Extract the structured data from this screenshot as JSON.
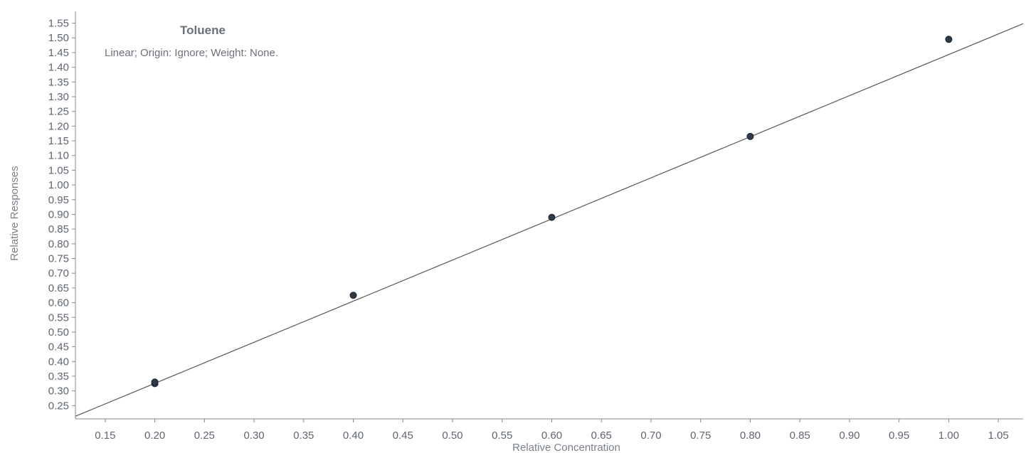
{
  "chart_data": {
    "type": "scatter",
    "title": "Toluene",
    "subtitle": "Linear; Origin: Ignore; Weight: None.",
    "xlabel": "Relative Concentration",
    "ylabel": "Relative Responses",
    "xlim": [
      0.12,
      1.075
    ],
    "ylim": [
      0.205,
      1.59
    ],
    "xticks": [
      "0.15",
      "0.20",
      "0.25",
      "0.30",
      "0.35",
      "0.40",
      "0.45",
      "0.50",
      "0.55",
      "0.60",
      "0.65",
      "0.70",
      "0.75",
      "0.80",
      "0.85",
      "0.90",
      "0.95",
      "1.00",
      "1.05"
    ],
    "yticks": [
      "0.25",
      "0.30",
      "0.35",
      "0.40",
      "0.45",
      "0.50",
      "0.55",
      "0.60",
      "0.65",
      "0.70",
      "0.75",
      "0.80",
      "0.85",
      "0.90",
      "0.95",
      "1.00",
      "1.05",
      "1.10",
      "1.15",
      "1.20",
      "1.25",
      "1.30",
      "1.35",
      "1.40",
      "1.45",
      "1.50",
      "1.55"
    ],
    "series": [
      {
        "points": [
          {
            "x": 0.2,
            "y": 0.325
          },
          {
            "x": 0.2,
            "y": 0.33
          },
          {
            "x": 0.4,
            "y": 0.625
          },
          {
            "x": 0.6,
            "y": 0.89
          },
          {
            "x": 0.8,
            "y": 1.165
          },
          {
            "x": 1.0,
            "y": 1.495
          }
        ]
      }
    ],
    "fit_line": {
      "type": "linear",
      "slope": 1.397,
      "intercept": 0.0463
    },
    "grid": false,
    "colors": {
      "points": "#2e3a48",
      "point_edge": "#1c2430",
      "line": "#5a5a5a",
      "axis": "#8a8a8a",
      "text": "#5f6670"
    }
  }
}
